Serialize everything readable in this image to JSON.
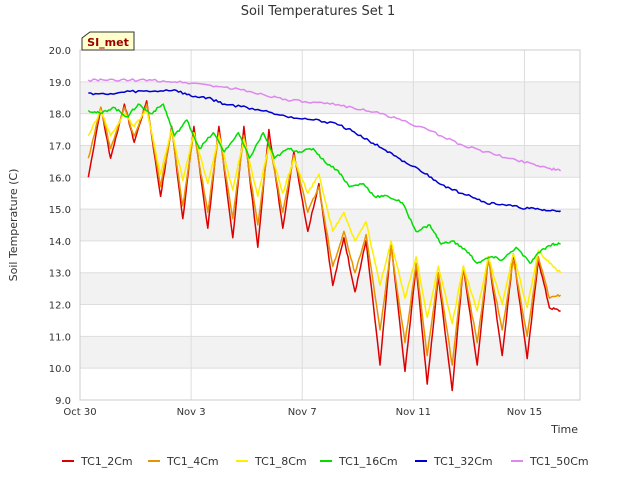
{
  "chart_data": {
    "type": "line",
    "title": "Soil Temperatures Set 1",
    "xlabel": "Time",
    "ylabel": "Soil Temperature (C)",
    "site_label": "SI_met",
    "ylim": [
      9.0,
      20.0
    ],
    "xlim": [
      0,
      18.0
    ],
    "yticks": [
      "9.0",
      "10.0",
      "11.0",
      "12.0",
      "13.0",
      "14.0",
      "15.0",
      "16.0",
      "17.0",
      "18.0",
      "19.0",
      "20.0"
    ],
    "xticks": [
      {
        "label": "Oct 30",
        "value": 0
      },
      {
        "label": "Nov 3",
        "value": 4
      },
      {
        "label": "Nov 7",
        "value": 8
      },
      {
        "label": "Nov 11",
        "value": 12
      },
      {
        "label": "Nov 15",
        "value": 16
      }
    ],
    "grid": true,
    "legend_position": "bottom",
    "series": [
      {
        "name": "TC1_2Cm",
        "color": "#dd0000",
        "x": [
          0.3,
          0.75,
          1.1,
          1.6,
          1.95,
          2.4,
          2.9,
          3.3,
          3.7,
          4.1,
          4.6,
          5.0,
          5.5,
          5.9,
          6.4,
          6.8,
          7.3,
          7.7,
          8.2,
          8.6,
          9.1,
          9.5,
          9.9,
          10.3,
          10.8,
          11.2,
          11.7,
          12.1,
          12.5,
          12.9,
          13.4,
          13.8,
          14.3,
          14.7,
          15.2,
          15.6,
          16.1,
          16.5,
          16.9,
          17.3
        ],
        "values": [
          16.0,
          18.2,
          16.6,
          18.3,
          17.1,
          18.4,
          15.4,
          17.6,
          14.7,
          17.6,
          14.4,
          17.6,
          14.1,
          17.6,
          13.8,
          17.5,
          14.4,
          16.8,
          14.3,
          15.8,
          12.6,
          14.1,
          12.4,
          14.0,
          10.1,
          13.9,
          9.9,
          13.2,
          9.5,
          12.9,
          9.3,
          13.2,
          10.1,
          13.5,
          10.4,
          13.6,
          10.3,
          13.4,
          11.9,
          11.8
        ]
      },
      {
        "name": "TC1_4Cm",
        "color": "#e69500",
        "x": [
          0.3,
          0.75,
          1.1,
          1.6,
          1.95,
          2.4,
          2.9,
          3.3,
          3.7,
          4.1,
          4.6,
          5.0,
          5.5,
          5.9,
          6.4,
          6.8,
          7.3,
          7.7,
          8.2,
          8.6,
          9.1,
          9.5,
          9.9,
          10.3,
          10.8,
          11.2,
          11.7,
          12.1,
          12.5,
          12.9,
          13.4,
          13.8,
          14.3,
          14.7,
          15.2,
          15.6,
          16.1,
          16.5,
          16.9,
          17.3
        ],
        "values": [
          16.6,
          18.2,
          16.9,
          18.2,
          17.3,
          18.3,
          15.7,
          17.5,
          15.1,
          17.4,
          14.9,
          17.4,
          14.7,
          17.3,
          14.5,
          17.1,
          14.9,
          16.7,
          14.9,
          15.7,
          13.2,
          14.3,
          13.0,
          14.2,
          11.2,
          13.8,
          10.8,
          13.3,
          10.4,
          13.0,
          10.1,
          13.2,
          10.8,
          13.4,
          11.2,
          13.4,
          11.0,
          13.5,
          12.2,
          12.3
        ]
      },
      {
        "name": "TC1_8Cm",
        "color": "#ffee00",
        "x": [
          0.3,
          0.75,
          1.1,
          1.6,
          1.95,
          2.4,
          2.9,
          3.3,
          3.7,
          4.1,
          4.6,
          5.0,
          5.5,
          5.9,
          6.4,
          6.8,
          7.3,
          7.7,
          8.2,
          8.6,
          9.1,
          9.5,
          9.9,
          10.3,
          10.8,
          11.2,
          11.7,
          12.1,
          12.5,
          12.9,
          13.4,
          13.8,
          14.3,
          14.7,
          15.2,
          15.6,
          16.1,
          16.5,
          16.9,
          17.3
        ],
        "values": [
          17.3,
          18.1,
          17.3,
          18.0,
          17.6,
          18.1,
          16.1,
          17.5,
          15.9,
          17.4,
          15.8,
          17.3,
          15.6,
          17.2,
          15.4,
          17.0,
          15.5,
          16.6,
          15.5,
          16.1,
          14.3,
          14.9,
          14.0,
          14.6,
          12.6,
          14.0,
          12.2,
          13.5,
          11.6,
          13.2,
          11.4,
          13.2,
          11.8,
          13.5,
          12.0,
          13.6,
          11.9,
          13.7,
          13.3,
          13.0
        ]
      },
      {
        "name": "TC1_16Cm",
        "color": "#00dd00",
        "x": [
          0.3,
          0.75,
          1.2,
          1.7,
          2.1,
          2.55,
          3.0,
          3.4,
          3.85,
          4.3,
          4.8,
          5.2,
          5.7,
          6.1,
          6.6,
          7.0,
          7.5,
          7.9,
          8.4,
          8.8,
          9.3,
          9.7,
          10.2,
          10.6,
          11.1,
          11.6,
          12.1,
          12.6,
          13.0,
          13.4,
          13.9,
          14.3,
          14.8,
          15.2,
          15.7,
          16.2,
          16.6,
          17.0,
          17.3
        ],
        "values": [
          18.1,
          18.0,
          18.2,
          17.9,
          18.3,
          18.0,
          18.3,
          17.3,
          17.8,
          16.9,
          17.4,
          16.8,
          17.4,
          16.6,
          17.4,
          16.6,
          16.9,
          16.8,
          16.9,
          16.5,
          16.2,
          15.7,
          15.8,
          15.4,
          15.4,
          15.2,
          14.3,
          14.5,
          13.9,
          14.0,
          13.7,
          13.3,
          13.5,
          13.4,
          13.8,
          13.3,
          13.7,
          13.9,
          13.9
        ]
      },
      {
        "name": "TC1_32Cm",
        "color": "#0000cc",
        "x": [
          0.3,
          1.0,
          1.8,
          2.6,
          3.4,
          4.0,
          4.6,
          5.2,
          6.0,
          6.8,
          7.6,
          8.4,
          9.2,
          9.8,
          10.4,
          11.0,
          11.6,
          12.2,
          12.8,
          13.4,
          14.0,
          14.6,
          15.2,
          15.8,
          16.4,
          16.9,
          17.3
        ],
        "values": [
          18.65,
          18.6,
          18.7,
          18.7,
          18.75,
          18.55,
          18.5,
          18.3,
          18.2,
          18.05,
          17.9,
          17.8,
          17.7,
          17.45,
          17.15,
          16.85,
          16.5,
          16.25,
          15.9,
          15.6,
          15.45,
          15.2,
          15.15,
          15.05,
          15.0,
          14.95,
          14.95
        ]
      },
      {
        "name": "TC1_50Cm",
        "color": "#dd88ee",
        "x": [
          0.3,
          1.0,
          1.8,
          2.6,
          3.4,
          4.2,
          5.0,
          5.8,
          6.6,
          7.4,
          8.2,
          9.0,
          9.8,
          10.6,
          11.4,
          12.2,
          13.0,
          13.8,
          14.6,
          15.4,
          16.2,
          16.8,
          17.3
        ],
        "values": [
          19.05,
          19.05,
          19.05,
          19.05,
          19.0,
          18.95,
          18.85,
          18.75,
          18.6,
          18.45,
          18.35,
          18.3,
          18.2,
          18.05,
          17.85,
          17.6,
          17.3,
          17.0,
          16.8,
          16.6,
          16.45,
          16.3,
          16.2
        ]
      }
    ]
  }
}
